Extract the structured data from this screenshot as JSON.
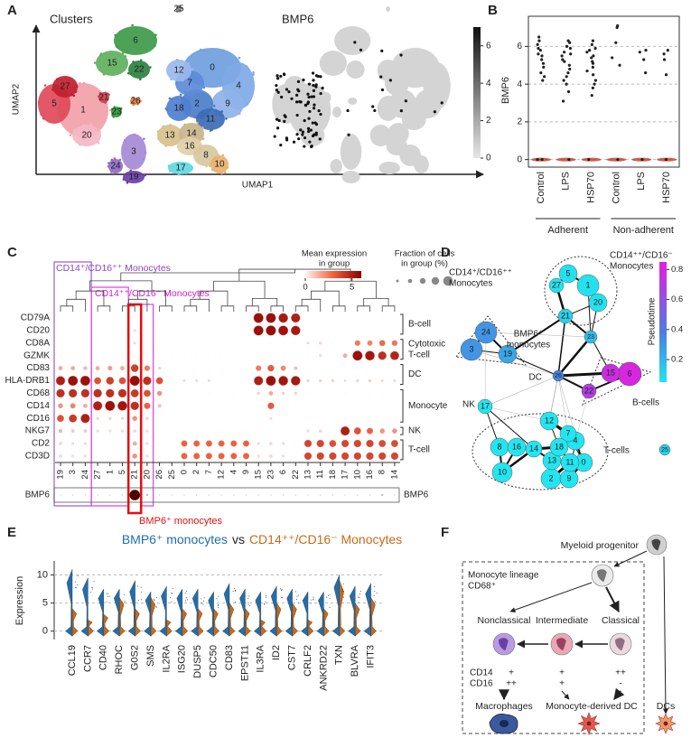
{
  "panel_a": {
    "label": "A",
    "clusters_title": "Clusters",
    "expression_title": "BMP6",
    "x_axis": "UMAP1",
    "y_axis": "UMAP2",
    "clusters": [
      {
        "label": "0",
        "color": "#6f9ee0"
      },
      {
        "label": "1",
        "color": "#f2a0a8"
      },
      {
        "label": "2",
        "color": "#4a7fc9"
      },
      {
        "label": "3",
        "color": "#a58ad6"
      },
      {
        "label": "4",
        "color": "#7fa9e6"
      },
      {
        "label": "5",
        "color": "#e04a5a"
      },
      {
        "label": "6",
        "color": "#3f9a4a"
      },
      {
        "label": "7",
        "color": "#5c8bd8"
      },
      {
        "label": "8",
        "color": "#d9c7a0"
      },
      {
        "label": "9",
        "color": "#8fb2e8"
      },
      {
        "label": "10",
        "color": "#e8b070"
      },
      {
        "label": "11",
        "color": "#3d6bb5"
      },
      {
        "label": "12",
        "color": "#9ab8ec"
      },
      {
        "label": "13",
        "color": "#d8c08c"
      },
      {
        "label": "14",
        "color": "#c9b48a"
      },
      {
        "label": "15",
        "color": "#5fb060"
      },
      {
        "label": "16",
        "color": "#e0cfa8"
      },
      {
        "label": "17",
        "color": "#5fd8e0"
      },
      {
        "label": "18",
        "color": "#4f7fd0"
      },
      {
        "label": "19",
        "color": "#6a3fa8"
      },
      {
        "label": "20",
        "color": "#f4b8c4"
      },
      {
        "label": "21",
        "color": "#d04050"
      },
      {
        "label": "22",
        "color": "#2e8040"
      },
      {
        "label": "23",
        "color": "#2f9a3a"
      },
      {
        "label": "24",
        "color": "#8e6ac8"
      },
      {
        "label": "25",
        "color": "#888888"
      },
      {
        "label": "26",
        "color": "#e08040"
      },
      {
        "label": "27",
        "color": "#c02030"
      }
    ],
    "colorbar_lim": [
      0,
      7
    ],
    "colorbar_ticks": [
      0,
      2,
      4,
      6
    ]
  },
  "panel_b": {
    "label": "B",
    "y_label": "BMP6",
    "ylim": [
      -0.4,
      7.6
    ],
    "yticks": [
      0,
      2,
      4,
      6
    ],
    "grid": true,
    "color": "#222222",
    "categories": [
      "Control",
      "LPS",
      "HSP70",
      "Control",
      "LPS",
      "HSP70"
    ],
    "groups": [
      "Adherent",
      "Non-adherent"
    ],
    "points": [
      [
        6.5,
        6.3,
        6.1,
        5.9,
        5.8,
        5.6,
        5.5,
        5.3,
        5.1,
        4.9,
        4.6,
        4.4,
        4.2,
        0,
        0
      ],
      [
        6.3,
        6.2,
        6.0,
        5.9,
        5.7,
        5.6,
        5.5,
        5.3,
        5.2,
        5.0,
        4.8,
        4.6,
        4.4,
        4.2,
        4.0,
        3.6,
        3.1,
        0
      ],
      [
        6.3,
        6.1,
        5.9,
        5.8,
        5.7,
        5.5,
        5.4,
        5.2,
        5.1,
        4.9,
        4.7,
        4.5,
        4.2,
        4.0,
        3.8,
        3.4,
        0
      ],
      [
        7.1,
        7.0,
        6.2,
        5.4,
        5.0,
        0
      ],
      [
        5.8,
        5.7,
        5.3,
        4.6,
        0
      ],
      [
        5.8,
        5.6,
        5.3,
        4.5,
        0
      ]
    ]
  },
  "panel_c": {
    "label": "C",
    "group_labels": [
      "CD14⁺/CD16⁺⁺ Monocytes",
      "CD14⁺⁺/CD16⁻ Monocytes"
    ],
    "highlight_label": "BMP6⁺ monocytes",
    "colorbar_title": [
      "Mean expression",
      "in group"
    ],
    "colorbar_lim": [
      0,
      6
    ],
    "colorbar_ticks": [
      0,
      5
    ],
    "size_title": [
      "Fraction of cells",
      "in group (%)"
    ],
    "genes": [
      "CD79A",
      "CD20",
      "CD8A",
      "GZMK",
      "CD83",
      "HLA-DRB1",
      "CD68",
      "CD14",
      "CD16",
      "NKG7",
      "CD2",
      "CD3D"
    ],
    "clusters": [
      "19",
      "3",
      "24",
      "27",
      "1",
      "5",
      "21",
      "20",
      "26",
      "25",
      "0",
      "2",
      "7",
      "12",
      "4",
      "9",
      "15",
      "23",
      "6",
      "22",
      "13",
      "11",
      "18",
      "17",
      "10",
      "16",
      "8",
      "14"
    ],
    "gene_groups": [
      [
        "B-cell"
      ],
      [
        "Cytotoxic",
        "T-cell"
      ],
      [
        "DC"
      ],
      [
        "Monocyte"
      ],
      [
        "NK"
      ],
      [
        "T-cell"
      ]
    ],
    "values": [
      [
        0,
        0,
        0,
        0,
        0,
        0,
        0,
        0,
        0,
        0,
        0,
        0,
        0,
        0,
        0,
        0,
        5.5,
        5.5,
        5.2,
        5,
        0,
        0,
        0,
        0,
        0,
        0,
        0,
        0
      ],
      [
        0,
        0,
        0,
        0,
        0,
        0,
        0.3,
        0,
        0,
        0,
        0,
        0,
        0,
        0,
        0,
        0,
        5.5,
        5.6,
        5.4,
        5.2,
        0,
        0,
        0,
        0,
        0,
        0,
        0,
        0
      ],
      [
        0,
        0,
        0,
        0,
        0,
        0,
        0.2,
        0,
        0,
        0,
        0,
        0,
        0,
        0,
        0,
        0,
        0,
        0,
        0,
        0,
        0.3,
        0.5,
        0,
        0,
        2.5,
        2.3,
        2.8,
        2.6
      ],
      [
        0,
        0,
        0,
        0,
        0,
        0,
        0,
        0,
        0,
        0,
        0,
        0,
        0,
        0,
        0,
        0,
        0,
        0,
        0,
        0,
        0,
        0.3,
        0,
        1.5,
        5.5,
        5.3,
        4.5,
        4.8
      ],
      [
        1.5,
        1.5,
        1.2,
        1.5,
        1.8,
        1.5,
        4,
        2.5,
        0.5,
        0,
        0,
        0,
        0,
        0,
        0,
        0,
        2.5,
        3.2,
        2.2,
        1,
        0,
        0,
        0,
        0,
        0,
        0,
        0,
        0
      ],
      [
        5,
        5.5,
        5.5,
        3.5,
        4,
        3.5,
        5.6,
        4.5,
        3.5,
        0,
        0.3,
        0.3,
        0.3,
        0,
        0,
        0,
        5,
        5.5,
        5.3,
        5.2,
        0.5,
        0.5,
        0.5,
        0.2,
        0.5,
        0.5,
        0.3,
        0.3
      ],
      [
        4.5,
        4.5,
        4.5,
        4.5,
        4.5,
        4.5,
        4.2,
        3.5,
        2,
        0,
        0,
        0,
        0,
        0,
        0,
        0,
        0.5,
        1.5,
        0.5,
        0.5,
        0,
        0,
        0,
        0,
        0,
        0,
        0,
        0
      ],
      [
        2,
        2.3,
        1.5,
        5,
        5.5,
        5.3,
        4.5,
        3,
        1,
        0,
        0,
        0,
        0,
        0,
        0,
        0,
        0,
        3.2,
        0,
        0,
        0,
        0,
        0,
        0,
        0,
        0,
        0,
        0
      ],
      [
        3.5,
        4.2,
        5,
        0.5,
        0.5,
        0.5,
        2,
        0.5,
        0,
        0,
        0,
        0,
        0,
        0,
        0,
        0,
        0,
        0.3,
        0,
        0,
        0,
        0,
        0,
        0,
        0,
        0,
        0,
        0
      ],
      [
        1.2,
        0.8,
        0.8,
        0.3,
        0.3,
        0.3,
        0.5,
        0.3,
        0,
        0,
        0,
        0,
        0,
        0,
        0,
        0,
        0,
        0,
        0,
        0,
        0.3,
        0.5,
        0,
        5,
        3.5,
        3,
        2,
        2
      ],
      [
        0.5,
        0.3,
        0.3,
        0,
        0,
        0,
        1.5,
        0.3,
        0,
        0,
        3,
        3,
        3,
        3,
        3,
        3,
        0.3,
        0.5,
        0.3,
        0,
        3.8,
        3.8,
        3.5,
        3.8,
        3.8,
        3.8,
        3.6,
        3.6
      ],
      [
        0.5,
        0.3,
        0.3,
        0,
        0,
        0,
        2,
        0.3,
        0,
        0,
        3,
        3,
        3,
        3,
        3,
        3,
        0.3,
        0.5,
        0.3,
        0,
        3.8,
        3.8,
        3.8,
        3.8,
        3.8,
        3.8,
        3.8,
        3.8
      ]
    ],
    "bmp6_label": "BMP6",
    "bmp6_values": [
      0,
      0,
      0,
      0,
      0,
      0,
      6,
      0.2,
      0,
      0,
      0,
      0,
      0,
      0,
      0,
      0,
      0,
      0,
      0,
      0,
      0,
      0,
      0,
      0,
      0,
      0,
      0.2,
      0
    ]
  },
  "panel_d": {
    "label": "D",
    "pseudotime_title": "Pseudotime",
    "pseudotime_lim": [
      0.05,
      0.85
    ],
    "pseudotime_ticks": [
      0.2,
      0.4,
      0.6,
      0.8
    ],
    "groups": [
      [
        "CD14⁺/CD16⁺⁺",
        "Monocytes"
      ],
      [
        "CD14⁺⁺/CD16⁻",
        "Monocytes"
      ],
      [
        "BMP6⁺",
        "monocytes"
      ],
      [
        "DC"
      ],
      [
        "NK"
      ],
      [
        "B-cells"
      ],
      [
        "T-cells"
      ]
    ],
    "nodes": [
      {
        "label": "0",
        "pseudotime": 0.05
      },
      {
        "label": "1",
        "pseudotime": 0.06
      },
      {
        "label": "2",
        "pseudotime": 0.05
      },
      {
        "label": "3",
        "pseudotime": 0.3
      },
      {
        "label": "4",
        "pseudotime": 0.05
      },
      {
        "label": "5",
        "pseudotime": 0.07
      },
      {
        "label": "6",
        "pseudotime": 0.82
      },
      {
        "label": "7",
        "pseudotime": 0.05
      },
      {
        "label": "8",
        "pseudotime": 0.05
      },
      {
        "label": "9",
        "pseudotime": 0.05
      },
      {
        "label": "10",
        "pseudotime": 0.05
      },
      {
        "label": "11",
        "pseudotime": 0.05
      },
      {
        "label": "12",
        "pseudotime": 0.05
      },
      {
        "label": "13",
        "pseudotime": 0.05
      },
      {
        "label": "14",
        "pseudotime": 0.05
      },
      {
        "label": "15",
        "pseudotime": 0.78
      },
      {
        "label": "16",
        "pseudotime": 0.05
      },
      {
        "label": "17",
        "pseudotime": 0.05
      },
      {
        "label": "18",
        "pseudotime": 0.05
      },
      {
        "label": "19",
        "pseudotime": 0.25
      },
      {
        "label": "20",
        "pseudotime": 0.06
      },
      {
        "label": "21",
        "pseudotime": 0.12
      },
      {
        "label": "22",
        "pseudotime": 0.7
      },
      {
        "label": "23",
        "pseudotime": 0.18
      },
      {
        "label": "24",
        "pseudotime": 0.3
      },
      {
        "label": "25",
        "pseudotime": 0.12
      },
      {
        "label": "26",
        "pseudotime": 0.35
      },
      {
        "label": "27",
        "pseudotime": 0.06
      }
    ]
  },
  "panel_e": {
    "label": "E",
    "title_vs": "vs",
    "y_label": "Expression",
    "ylim": [
      -1.5,
      12.5
    ],
    "yticks": [
      0,
      5,
      10
    ],
    "grid": true,
    "genes": [
      "CCL19",
      "CCR7",
      "CD40",
      "RHOC",
      "G0S2",
      "SMS",
      "IL2RA",
      "ISG20",
      "DUSP5",
      "CDC50",
      "CD83",
      "EPST11",
      "IL3RA",
      "ID2",
      "CST7",
      "CRLF2",
      "ANKRD22",
      "TXN",
      "BLVRA",
      "IFIT3"
    ],
    "series": [
      {
        "name": "BMP6⁺ monocytes",
        "color": "#1f6fae",
        "values": [
          11,
          9.5,
          7.5,
          7.5,
          9,
          7,
          8,
          7.5,
          7.5,
          7,
          8.5,
          7.5,
          7,
          8,
          7.5,
          7,
          7,
          10,
          8,
          8.5
        ]
      },
      {
        "name": "CD14⁺⁺/CD16⁻ Monocytes",
        "color": "#c86a1a",
        "values": [
          4,
          2,
          3,
          6,
          4,
          6,
          2,
          4,
          4,
          4,
          5,
          4,
          2,
          5,
          5,
          2,
          4,
          9,
          5,
          6
        ]
      }
    ]
  },
  "panel_f": {
    "label": "F",
    "progenitor": "Myeloid progenitor",
    "lineage": [
      "Monocyte lineage",
      "CD68⁺"
    ],
    "subsets": [
      "Nonclassical",
      "Intermediate",
      "Classical"
    ],
    "markers": [
      "CD14",
      "CD16"
    ],
    "levels": [
      [
        "+",
        "++"
      ],
      [
        "+",
        "+"
      ],
      [
        "++",
        "-"
      ]
    ],
    "outcomes": [
      "Macrophages",
      "Monocyte-derived DC",
      "DCs"
    ]
  }
}
